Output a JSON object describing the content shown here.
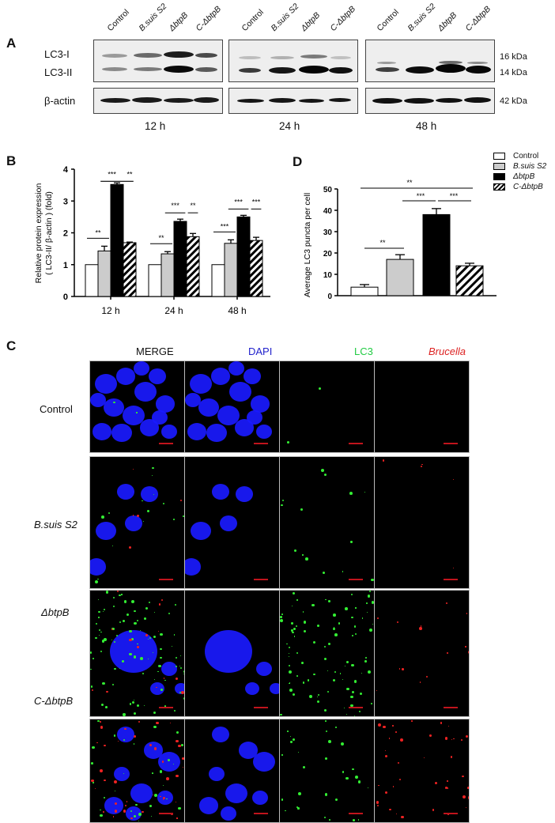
{
  "panels": {
    "A": {
      "label": "A",
      "lanes": [
        "Control",
        "B.suis S2",
        "ΔbtpB",
        "C-ΔbtpB"
      ],
      "row_labels": {
        "lc3i": "LC3-I",
        "lc3ii": "LC3-II",
        "actin": "β-actin"
      },
      "markers": {
        "lc3i": "16 kDa",
        "lc3ii": "14 kDa",
        "actin": "42 kDa"
      },
      "timepoints": [
        "12 h",
        "24 h",
        "48 h"
      ]
    },
    "B": {
      "label": "B"
    },
    "C": {
      "label": "C",
      "channels": [
        "MERGE",
        "DAPI",
        "LC3",
        "Brucella"
      ],
      "channel_colors": [
        "#111111",
        "#2222cc",
        "#22cc44",
        "#dd2222"
      ],
      "rows": [
        "Control",
        "B.suis S2",
        "ΔbtpB",
        "C-ΔbtpB"
      ]
    },
    "D": {
      "label": "D"
    }
  },
  "legend": {
    "items": [
      {
        "label": "Control",
        "fill": "#ffffff",
        "pattern": "none"
      },
      {
        "label": "B.suis S2",
        "fill": "#cccccc",
        "pattern": "none"
      },
      {
        "label": "ΔbtpB",
        "fill": "#000000",
        "pattern": "none"
      },
      {
        "label": "C-ΔbtpB",
        "fill": "#ffffff",
        "pattern": "hatch"
      }
    ]
  },
  "chart_data": [
    {
      "panel": "B",
      "type": "bar",
      "title": "",
      "xlabel": "",
      "ylabel": "Relative protein expression ( LC3-II/ β-actin ) (fold)",
      "ylabel_line1": "Relative protein expression",
      "ylabel_line2": "( LC3-II/ β-actin ) (fold)",
      "ylim": [
        0,
        4
      ],
      "yticks": [
        0,
        1,
        2,
        3,
        4
      ],
      "categories": [
        "12 h",
        "24 h",
        "48 h"
      ],
      "series": [
        {
          "name": "Control",
          "values": [
            1.0,
            1.0,
            1.0
          ],
          "errors": [
            0,
            0,
            0
          ]
        },
        {
          "name": "B.suis S2",
          "values": [
            1.43,
            1.34,
            1.67
          ],
          "errors": [
            0.15,
            0.07,
            0.11
          ]
        },
        {
          "name": "ΔbtpB",
          "values": [
            3.52,
            2.36,
            2.5
          ],
          "errors": [
            0.05,
            0.07,
            0.05
          ]
        },
        {
          "name": "C-ΔbtpB",
          "values": [
            1.69,
            1.88,
            1.76
          ],
          "errors": [
            0.02,
            0.1,
            0.1
          ]
        }
      ],
      "significance": [
        {
          "group": "12 h",
          "from": "Control",
          "to": "B.suis S2",
          "label": "**"
        },
        {
          "group": "12 h",
          "from": "B.suis S2",
          "to": "ΔbtpB",
          "label": "***"
        },
        {
          "group": "12 h",
          "from": "ΔbtpB",
          "to": "C-ΔbtpB",
          "label": "**"
        },
        {
          "group": "24 h",
          "from": "Control",
          "to": "B.suis S2",
          "label": "**"
        },
        {
          "group": "24 h",
          "from": "B.suis S2",
          "to": "ΔbtpB",
          "label": "***"
        },
        {
          "group": "24 h",
          "from": "ΔbtpB",
          "to": "C-ΔbtpB",
          "label": "**"
        },
        {
          "group": "48 h",
          "from": "Control",
          "to": "B.suis S2",
          "label": "***"
        },
        {
          "group": "48 h",
          "from": "B.suis S2",
          "to": "ΔbtpB",
          "label": "***"
        },
        {
          "group": "48 h",
          "from": "ΔbtpB",
          "to": "C-ΔbtpB",
          "label": "***"
        }
      ],
      "legend_position": "shared, top-right of panel D",
      "grid": false
    },
    {
      "panel": "D",
      "type": "bar",
      "title": "",
      "xlabel": "",
      "ylabel": "Average LC3 puncta per cell",
      "ylim": [
        0,
        50
      ],
      "yticks": [
        0,
        10,
        20,
        30,
        40,
        50
      ],
      "categories": [
        "Control",
        "B.suis S2",
        "ΔbtpB",
        "C-ΔbtpB"
      ],
      "values": [
        4,
        17,
        38,
        14
      ],
      "errors": [
        1.2,
        2.2,
        2.8,
        1.2
      ],
      "significance": [
        {
          "from": "Control",
          "to": "C-ΔbtpB",
          "label": "**"
        },
        {
          "from": "B.suis S2",
          "to": "ΔbtpB",
          "label": "***"
        },
        {
          "from": "ΔbtpB",
          "to": "C-ΔbtpB",
          "label": "***"
        },
        {
          "from": "Control",
          "to": "B.suis S2",
          "label": "**"
        }
      ],
      "legend_position": "top-right",
      "grid": false
    }
  ]
}
